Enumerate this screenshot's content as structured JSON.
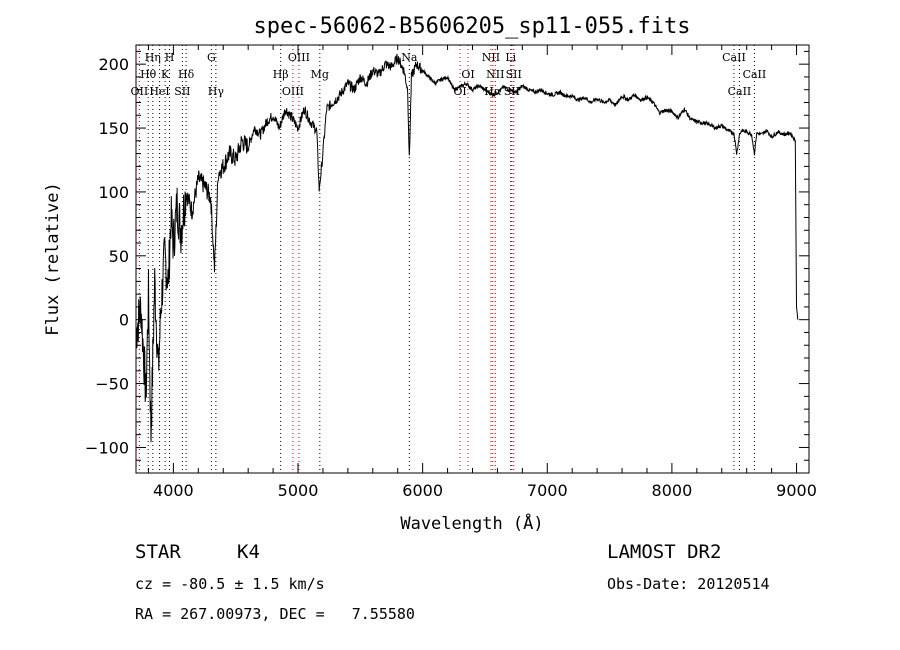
{
  "chart_data": {
    "type": "line",
    "title": "spec-56062-B5606205_sp11-055.fits",
    "xlabel": "Wavelength (Å)",
    "ylabel": "Flux (relative)",
    "xlim": [
      3700,
      9100
    ],
    "ylim": [
      -120,
      215
    ],
    "xticks": [
      4000,
      5000,
      6000,
      7000,
      8000,
      9000
    ],
    "yticks": [
      -100,
      -50,
      0,
      50,
      100,
      150,
      200
    ],
    "series": [
      {
        "x": [
          3700,
          3740,
          3780,
          3800,
          3820,
          3850,
          3880,
          3900,
          3930,
          3960,
          3980,
          4000,
          4030,
          4060,
          4100,
          4150,
          4200,
          4250,
          4300,
          4330,
          4360,
          4400,
          4450,
          4500,
          4550,
          4600,
          4650,
          4700,
          4750,
          4800,
          4850,
          4900,
          4950,
          5000,
          5050,
          5100,
          5150,
          5170,
          5190,
          5230,
          5280,
          5330,
          5400,
          5450,
          5500,
          5550,
          5600,
          5650,
          5700,
          5750,
          5800,
          5850,
          5880,
          5893,
          5910,
          5950,
          6000,
          6050,
          6100,
          6150,
          6200,
          6250,
          6300,
          6350,
          6400,
          6450,
          6500,
          6563,
          6600,
          6650,
          6700,
          6750,
          6800,
          6850,
          6900,
          6950,
          7000,
          7050,
          7100,
          7150,
          7200,
          7250,
          7300,
          7350,
          7400,
          7450,
          7500,
          7550,
          7600,
          7650,
          7700,
          7750,
          7800,
          7850,
          7900,
          7950,
          8000,
          8050,
          8100,
          8150,
          8200,
          8250,
          8300,
          8350,
          8400,
          8450,
          8498,
          8520,
          8542,
          8560,
          8600,
          8640,
          8662,
          8680,
          8720,
          8760,
          8800,
          8850,
          8900,
          8950,
          8990,
          9000,
          9010
        ],
        "y": [
          -10,
          10,
          -60,
          20,
          -90,
          30,
          -40,
          10,
          50,
          30,
          80,
          60,
          90,
          70,
          100,
          85,
          110,
          105,
          95,
          40,
          115,
          120,
          130,
          125,
          140,
          135,
          150,
          145,
          155,
          160,
          150,
          165,
          158,
          150,
          165,
          155,
          148,
          102,
          120,
          165,
          170,
          175,
          185,
          180,
          190,
          185,
          195,
          192,
          200,
          198,
          205,
          195,
          180,
          125,
          190,
          200,
          195,
          190,
          185,
          188,
          190,
          180,
          182,
          185,
          180,
          183,
          180,
          176,
          178,
          182,
          180,
          178,
          183,
          180,
          178,
          180,
          177,
          176,
          178,
          175,
          175,
          172,
          174,
          170,
          173,
          170,
          172,
          168,
          175,
          172,
          176,
          172,
          174,
          170,
          162,
          164,
          163,
          158,
          165,
          157,
          155,
          154,
          153,
          150,
          152,
          148,
          146,
          130,
          145,
          148,
          147,
          145,
          130,
          146,
          145,
          148,
          143,
          147,
          145,
          146,
          140,
          10,
          0
        ],
        "color": "#000000"
      }
    ],
    "spectral_lines": [
      {
        "label": "OII",
        "x": 3727,
        "row": 2,
        "color": "#aa0000"
      },
      {
        "label": "Hθ",
        "x": 3798,
        "row": 1,
        "color": "#000000"
      },
      {
        "label": "Hη",
        "x": 3835,
        "row": 0,
        "color": "#000000"
      },
      {
        "label": "HeI",
        "x": 3889,
        "row": 2,
        "color": "#000000"
      },
      {
        "label": "K",
        "x": 3934,
        "row": 1,
        "color": "#000000"
      },
      {
        "label": "H",
        "x": 3969,
        "row": 0,
        "color": "#000000"
      },
      {
        "label": "SII",
        "x": 4072,
        "row": 2,
        "color": "#000000"
      },
      {
        "label": "Hδ",
        "x": 4102,
        "row": 1,
        "color": "#000000"
      },
      {
        "label": "G",
        "x": 4305,
        "row": 0,
        "color": "#000000"
      },
      {
        "label": "Hγ",
        "x": 4341,
        "row": 2,
        "color": "#000000"
      },
      {
        "label": "Hβ",
        "x": 4861,
        "row": 1,
        "color": "#000000"
      },
      {
        "label": "OIII",
        "x": 4959,
        "row": 2,
        "color": "#aa0000"
      },
      {
        "label": "OIII",
        "x": 5007,
        "row": 0,
        "color": "#aa0000"
      },
      {
        "label": "Mg",
        "x": 5175,
        "row": 1,
        "color": "#000000"
      },
      {
        "label": "Na",
        "x": 5893,
        "row": 0,
        "color": "#000000"
      },
      {
        "label": "OI",
        "x": 6300,
        "row": 2,
        "color": "#aa0000"
      },
      {
        "label": "OI",
        "x": 6364,
        "row": 1,
        "color": "#aa0000"
      },
      {
        "label": "NII",
        "x": 6548,
        "row": 0,
        "color": "#aa0000"
      },
      {
        "label": "Hα",
        "x": 6563,
        "row": 2,
        "color": "#aa0000"
      },
      {
        "label": "NII",
        "x": 6583,
        "row": 1,
        "color": "#aa0000"
      },
      {
        "label": "Li",
        "x": 6707,
        "row": 0,
        "color": "#000000"
      },
      {
        "label": "SII",
        "x": 6716,
        "row": 2,
        "color": "#aa0000"
      },
      {
        "label": "SII",
        "x": 6731,
        "row": 1,
        "color": "#aa0000"
      },
      {
        "label": "CaII",
        "x": 8498,
        "row": 0,
        "color": "#000000"
      },
      {
        "label": "CaII",
        "x": 8542,
        "row": 2,
        "color": "#000000"
      },
      {
        "label": "CaII",
        "x": 8662,
        "row": 1,
        "color": "#000000"
      }
    ]
  },
  "info": {
    "object_class": "STAR",
    "subclass": "K4",
    "survey": "LAMOST DR2",
    "cz": "cz = -80.5 ± 1.5 km/s",
    "obs_date": "Obs-Date: 20120514",
    "coords": "RA = 267.00973, DEC =   7.55580"
  }
}
